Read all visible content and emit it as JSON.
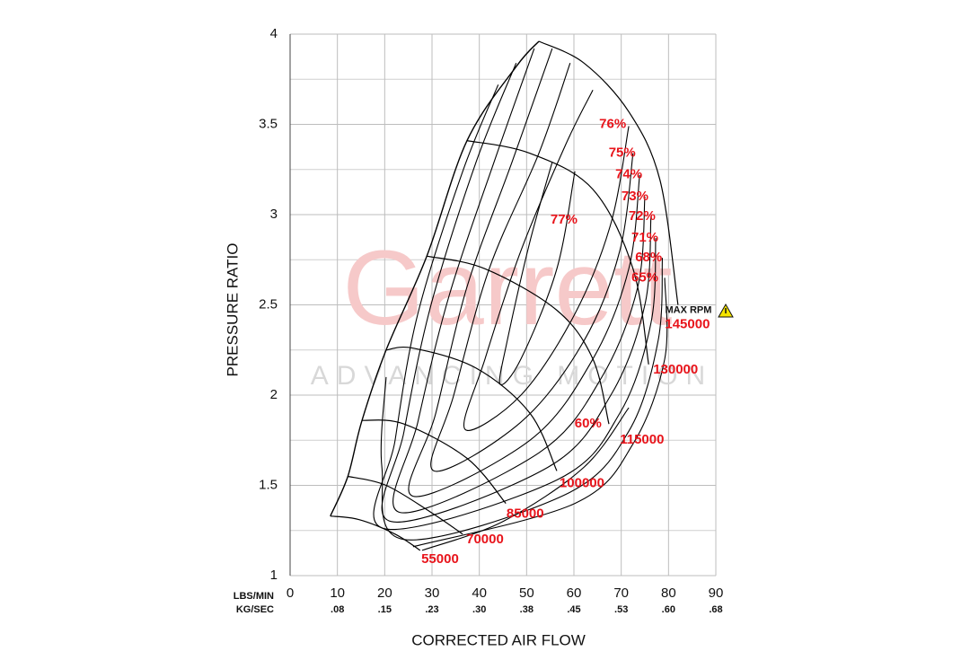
{
  "chart_data": {
    "type": "compressor-map",
    "y_label": "PRESSURE RATIO",
    "x_label": "CORRECTED AIR FLOW",
    "x_unit": "LBS/MIN",
    "x2_unit": "KG/SEC",
    "watermark": "Garrett",
    "watermark_subtitle": "ADVANCING MOTION",
    "xlim": [
      0,
      90
    ],
    "ylim": [
      1,
      4
    ],
    "xticks": [
      0,
      10,
      20,
      30,
      40,
      50,
      60,
      70,
      80,
      90
    ],
    "x2ticks": [
      {
        "value": 10,
        "label": ".08"
      },
      {
        "value": 20,
        "label": ".15"
      },
      {
        "value": 30,
        "label": ".23"
      },
      {
        "value": 40,
        "label": ".30"
      },
      {
        "value": 50,
        "label": ".38"
      },
      {
        "value": 60,
        "label": ".45"
      },
      {
        "value": 70,
        "label": ".53"
      },
      {
        "value": 80,
        "label": ".60"
      },
      {
        "value": 90,
        "label": ".68"
      }
    ],
    "yticks": [
      1,
      1.5,
      2,
      2.5,
      3,
      3.5,
      4
    ],
    "yminor": [
      1.25,
      1.75,
      2.25,
      2.75,
      3.25,
      3.75
    ],
    "grid": true,
    "line_color": "#000000",
    "label_color": "#e8141b",
    "surge_line": {
      "x": [
        8.5,
        12.2,
        15.2,
        20.3,
        28.9,
        37.4,
        47.8,
        52.6
      ],
      "y": [
        1.33,
        1.55,
        1.86,
        2.25,
        2.77,
        3.41,
        3.82,
        3.96
      ]
    },
    "speed_lines": [
      {
        "label": "55000",
        "label_x": 31.7,
        "label_y": 1.09,
        "x": [
          8.5,
          14.6,
          22.2,
          27.5
        ],
        "y": [
          1.33,
          1.31,
          1.23,
          1.14
        ]
      },
      {
        "label": "70000",
        "label_x": 41.2,
        "label_y": 1.2,
        "x": [
          12.2,
          20.3,
          29.8,
          36.5
        ],
        "y": [
          1.55,
          1.5,
          1.35,
          1.23
        ]
      },
      {
        "label": "85000",
        "label_x": 49.7,
        "label_y": 1.34,
        "x": [
          15.2,
          24.1,
          37.4,
          45.6
        ],
        "y": [
          1.86,
          1.84,
          1.65,
          1.4
        ]
      },
      {
        "label": "100000",
        "label_x": 61.7,
        "label_y": 1.51,
        "x": [
          20.3,
          26.0,
          39.3,
          50.7,
          56.4
        ],
        "y": [
          2.25,
          2.26,
          2.15,
          1.9,
          1.58
        ]
      },
      {
        "label": "115000",
        "label_x": 74.4,
        "label_y": 1.75,
        "x": [
          28.9,
          41.2,
          56.4,
          64.0,
          67.4
        ],
        "y": [
          2.77,
          2.7,
          2.47,
          2.2,
          1.84
        ]
      },
      {
        "label": "130000",
        "label_x": 81.5,
        "label_y": 2.14,
        "x": [
          37.4,
          50.7,
          64.0,
          72.5,
          75.8
        ],
        "y": [
          3.41,
          3.34,
          3.14,
          2.7,
          2.17
        ]
      },
      {
        "label": "145000",
        "label_x": 84.0,
        "label_y": 2.39,
        "x": [
          52.6,
          62.1,
          71.6,
          78.2,
          82.0
        ],
        "y": [
          3.96,
          3.84,
          3.57,
          3.19,
          2.5
        ]
      }
    ],
    "max_rpm_label": "MAX RPM",
    "max_rpm_x": 84.2,
    "max_rpm_y": 2.47,
    "efficiency_contours": [
      {
        "label": "77%",
        "label_x": 57.9,
        "label_y": 2.97,
        "x": [
          60.2,
          56.4,
          48.8,
          44.4,
          45.9,
          50.7,
          55.4
        ],
        "y": [
          3.24,
          2.7,
          2.2,
          2.06,
          2.3,
          2.85,
          3.29
        ]
      },
      {
        "label": "76%",
        "label_x": 68.2,
        "label_y": 3.5,
        "x": [
          71.6,
          67.8,
          60.2,
          48.8,
          37.0,
          41.2,
          48.8,
          58.3,
          64.0
        ],
        "y": [
          3.49,
          2.95,
          2.45,
          2.0,
          1.81,
          2.2,
          2.8,
          3.39,
          3.69
        ]
      },
      {
        "label": "75%",
        "label_x": 70.2,
        "label_y": 3.34,
        "x": [
          72.5,
          69.7,
          62.1,
          48.8,
          30.4,
          34.6,
          42.1,
          52.6,
          59.2
        ],
        "y": [
          3.34,
          2.8,
          2.3,
          1.85,
          1.58,
          2.0,
          2.7,
          3.34,
          3.84
        ]
      },
      {
        "label": "74%",
        "label_x": 71.6,
        "label_y": 3.22,
        "x": [
          73.9,
          71.6,
          64.0,
          50.7,
          26.0,
          30.8,
          37.4,
          46.9,
          55.4
        ],
        "y": [
          3.22,
          2.7,
          2.2,
          1.75,
          1.44,
          1.9,
          2.6,
          3.29,
          3.92
        ]
      },
      {
        "label": "73%",
        "label_x": 72.9,
        "label_y": 3.1,
        "x": [
          75.0,
          73.5,
          65.9,
          52.6,
          23.2,
          27.0,
          33.6,
          43.1,
          51.6
        ],
        "y": [
          3.1,
          2.6,
          2.1,
          1.68,
          1.35,
          1.85,
          2.55,
          3.29,
          3.92
        ]
      },
      {
        "label": "72%",
        "label_x": 74.4,
        "label_y": 2.99,
        "x": [
          76.3,
          75.0,
          67.8,
          54.5,
          21.3,
          24.1,
          29.8,
          39.3,
          47.8
        ],
        "y": [
          2.99,
          2.5,
          2.0,
          1.6,
          1.3,
          1.8,
          2.5,
          3.29,
          3.84
        ]
      },
      {
        "label": "71%",
        "label_x": 75.0,
        "label_y": 2.87,
        "x": [
          77.3,
          76.3,
          69.7,
          56.4,
          19.9,
          22.2,
          27.0,
          36.5,
          44.0
        ],
        "y": [
          2.87,
          2.4,
          1.9,
          1.53,
          1.26,
          1.75,
          2.45,
          3.24,
          3.72
        ]
      },
      {
        "label": "68%",
        "label_x": 75.8,
        "label_y": 2.76,
        "x": [
          78.7,
          77.8,
          71.6,
          58.3,
          24.1,
          19.4,
          20.3
        ],
        "y": [
          2.76,
          2.3,
          1.8,
          1.45,
          1.2,
          1.6,
          2.1
        ]
      },
      {
        "label": "65%",
        "label_x": 75.0,
        "label_y": 2.65,
        "x": [
          79.2,
          79.2,
          72.5,
          60.2,
          26.0
        ],
        "y": [
          2.65,
          2.2,
          1.73,
          1.4,
          1.16
        ]
      },
      {
        "label": "60%",
        "label_x": 63.0,
        "label_y": 1.84,
        "x": [
          71.6,
          62.1,
          45.0,
          27.9
        ],
        "y": [
          1.93,
          1.6,
          1.3,
          1.14
        ]
      }
    ]
  }
}
